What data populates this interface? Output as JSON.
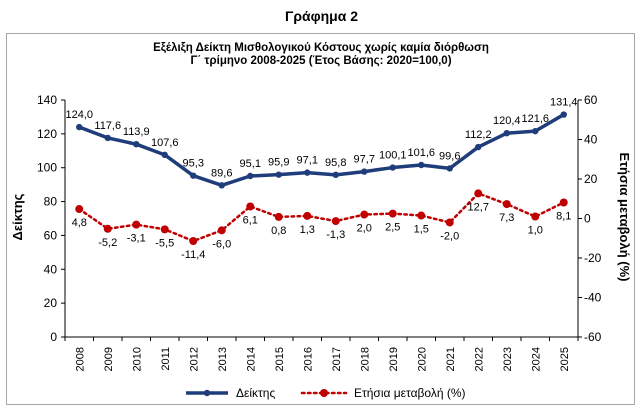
{
  "page": {
    "heading": "Γράφημα 2"
  },
  "chart_data": {
    "type": "line",
    "title_line1": "Εξέλιξη Δείκτη Μισθολογικού  Κόστους χωρίς καμία διόρθωση",
    "title_line2": "Γ΄ τρίμηνο 2008-2025 (Έτος Βάσης: 2020=100,0)",
    "categories": [
      "2008",
      "2009",
      "2010",
      "2011",
      "2012",
      "2013",
      "2014",
      "2015",
      "2016",
      "2017",
      "2018",
      "2019",
      "2020",
      "2021",
      "2022",
      "2023",
      "2024",
      "2025"
    ],
    "ylabel_left": "Δείκτης",
    "ylabel_right": "Ετήσια μεταβολή (%)",
    "ylim_left": [
      0,
      140
    ],
    "yticks_left": [
      0,
      20,
      40,
      60,
      80,
      100,
      120,
      140
    ],
    "ylim_right": [
      -60,
      60
    ],
    "yticks_right": [
      -60,
      -40,
      -20,
      0,
      20,
      40,
      60
    ],
    "grid": false,
    "legend_position": "bottom",
    "series": [
      {
        "name": "Δείκτης",
        "axis": "left",
        "style": "solid",
        "color": "#1f3d7a",
        "values": [
          124.0,
          117.6,
          113.9,
          107.6,
          95.3,
          89.6,
          95.1,
          95.9,
          97.1,
          95.8,
          97.7,
          100.1,
          101.6,
          99.6,
          112.2,
          120.4,
          121.6,
          131.4
        ],
        "labels": [
          "124,0",
          "117,6",
          "113,9",
          "107,6",
          "95,3",
          "89,6",
          "95,1",
          "95,9",
          "97,1",
          "95,8",
          "97,7",
          "100,1",
          "101,6",
          "99,6",
          "112,2",
          "120,4",
          "121,6",
          "131,4"
        ]
      },
      {
        "name": "Ετήσια μεταβολή (%)",
        "axis": "right",
        "style": "dotted",
        "color": "#c00000",
        "values": [
          4.8,
          -5.2,
          -3.1,
          -5.5,
          -11.4,
          -6.0,
          6.1,
          0.8,
          1.3,
          -1.3,
          2.0,
          2.5,
          1.5,
          -2.0,
          12.7,
          7.3,
          1.0,
          8.1
        ],
        "labels": [
          "4,8",
          "-5,2",
          "-3,1",
          "-5,5",
          "-11,4",
          "-6,0",
          "6,1",
          "0,8",
          "1,3",
          "-1,3",
          "2,0",
          "2,5",
          "1,5",
          "-2,0",
          "12,7",
          "7,3",
          "1,0",
          "8,1"
        ]
      }
    ]
  }
}
